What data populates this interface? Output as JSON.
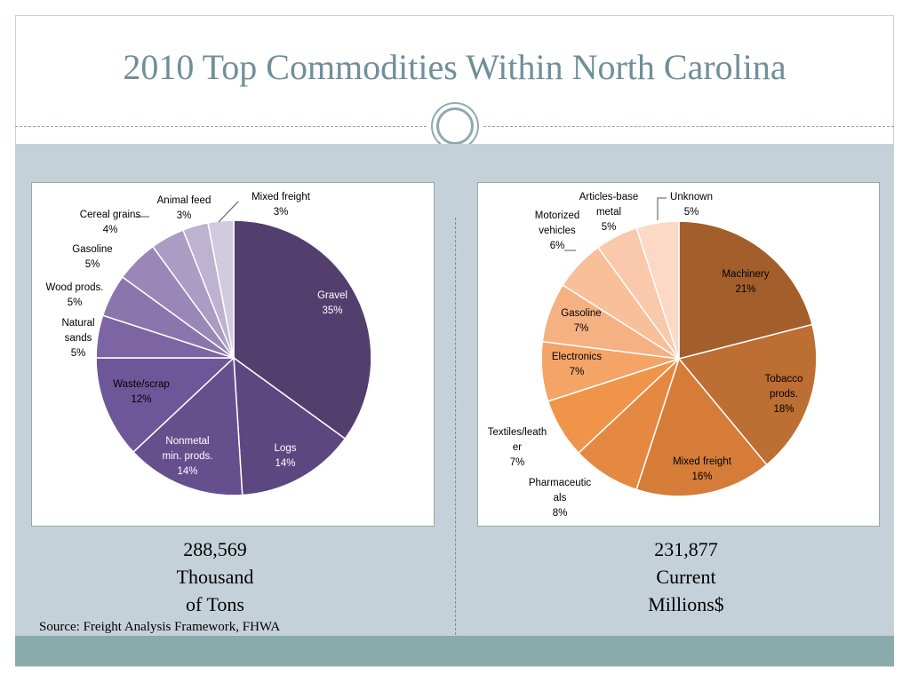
{
  "slide": {
    "title": "2010 Top Commodities Within North Carolina",
    "source": "Source: Freight Analysis Framework, FHWA"
  },
  "colors": {
    "title": "#6f8f99",
    "band": "#c5d1d8",
    "band_bottom": "#8aabab"
  },
  "chart_data": [
    {
      "type": "pie",
      "title": "",
      "totals": [
        "288,569",
        "Thousand",
        "of Tons"
      ],
      "slices": [
        {
          "label": [
            "Gravel",
            "35%"
          ],
          "value": 35,
          "color": "#533f6e"
        },
        {
          "label": [
            "Logs",
            "14%"
          ],
          "value": 14,
          "color": "#5c4781"
        },
        {
          "label": [
            "Nonmetal",
            "min. prods.",
            "14%"
          ],
          "value": 14,
          "color": "#654f8d"
        },
        {
          "label": [
            "Waste/scrap",
            "12%"
          ],
          "value": 12,
          "color": "#6e5798"
        },
        {
          "label": [
            "Natural",
            "sands",
            "5%"
          ],
          "value": 5,
          "color": "#7c65a2"
        },
        {
          "label": [
            "Wood prods.",
            "5%"
          ],
          "value": 5,
          "color": "#8a76ad"
        },
        {
          "label": [
            "Gasoline",
            "5%"
          ],
          "value": 5,
          "color": "#9988b7"
        },
        {
          "label": [
            "Cereal grains",
            "4%"
          ],
          "value": 4,
          "color": "#aa9cc3"
        },
        {
          "label": [
            "Animal feed",
            "3%"
          ],
          "value": 3,
          "color": "#bdb2d0"
        },
        {
          "label": [
            "Mixed freight",
            "3%"
          ],
          "value": 3,
          "color": "#d2cadf"
        }
      ]
    },
    {
      "type": "pie",
      "title": "",
      "totals": [
        "231,877",
        "Current",
        "Millions$"
      ],
      "slices": [
        {
          "label": [
            "Machinery",
            "21%"
          ],
          "value": 21,
          "color": "#a35e2b"
        },
        {
          "label": [
            "Tobacco",
            "prods.",
            "18%"
          ],
          "value": 18,
          "color": "#bc6e33"
        },
        {
          "label": [
            "Mixed freight",
            "16%"
          ],
          "value": 16,
          "color": "#d67c39"
        },
        {
          "label": [
            "Pharmaceutic",
            "als",
            "8%"
          ],
          "value": 8,
          "color": "#e58842"
        },
        {
          "label": [
            "Textiles/leath",
            "er",
            "7%"
          ],
          "value": 7,
          "color": "#f09449"
        },
        {
          "label": [
            "Electronics",
            "7%"
          ],
          "value": 7,
          "color": "#f4a466"
        },
        {
          "label": [
            "Gasoline",
            "7%"
          ],
          "value": 7,
          "color": "#f6b182"
        },
        {
          "label": [
            "Motorized",
            "vehicles",
            "6%"
          ],
          "value": 6,
          "color": "#f8bf99"
        },
        {
          "label": [
            "Articles-base",
            "metal",
            "5%"
          ],
          "value": 5,
          "color": "#fac9ab"
        },
        {
          "label": [
            "Unknown",
            "5%"
          ],
          "value": 5,
          "color": "#fcd8c6"
        }
      ]
    }
  ]
}
